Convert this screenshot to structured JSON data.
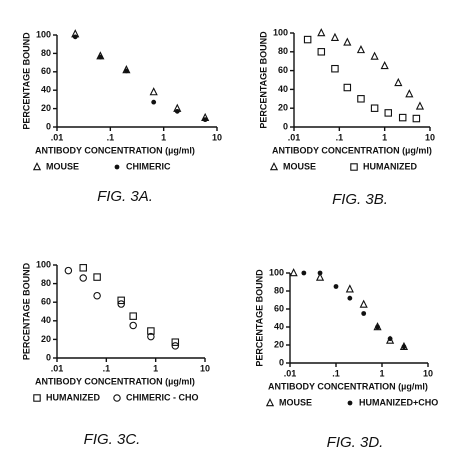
{
  "chart_data": [
    {
      "type": "scatter",
      "title": "FIG. 3A.",
      "xlabel": "ANTIBODY CONCENTRATION (µg/ml)",
      "ylabel": "PERCENTAGE BOUND",
      "xscale": "log",
      "xlim": [
        0.01,
        10
      ],
      "ylim": [
        0,
        100
      ],
      "xticks": [
        {
          "value": 0.01,
          "label": ".01"
        },
        {
          "value": 0.1,
          "label": ".1"
        },
        1,
        10
      ],
      "yticks": [
        0,
        20,
        40,
        60,
        80,
        100
      ],
      "series": [
        {
          "name": "MOUSE",
          "marker": "triangle",
          "color": "#111111",
          "x": [
            0.022,
            0.065,
            0.2,
            0.65,
            1.8,
            6
          ],
          "values": [
            101,
            77,
            62,
            38,
            20,
            10
          ]
        },
        {
          "name": "CHIMERIC",
          "marker": "dot",
          "color": "#111111",
          "x": [
            0.022,
            0.065,
            0.2,
            0.65,
            1.8,
            6
          ],
          "values": [
            98,
            76,
            61,
            27,
            17,
            8
          ]
        }
      ]
    },
    {
      "type": "scatter",
      "title": "FIG. 3B.",
      "xlabel": "ANTIBODY CONCENTRATION (µg/ml)",
      "ylabel": "PERCENTAGE BOUND",
      "xscale": "log",
      "xlim": [
        0.01,
        10
      ],
      "ylim": [
        0,
        100
      ],
      "xticks": [
        {
          "value": 0.01,
          "label": ".01"
        },
        {
          "value": 0.1,
          "label": ".1"
        },
        1,
        10
      ],
      "yticks": [
        0,
        20,
        40,
        60,
        80,
        100
      ],
      "series": [
        {
          "name": "MOUSE",
          "marker": "triangle",
          "color": "#111111",
          "x": [
            0.04,
            0.08,
            0.15,
            0.3,
            0.6,
            1,
            2,
            3.5,
            6
          ],
          "values": [
            100,
            95,
            90,
            82,
            75,
            65,
            47,
            35,
            22
          ]
        },
        {
          "name": "HUMANIZED",
          "marker": "square",
          "color": "#111111",
          "x": [
            0.02,
            0.04,
            0.08,
            0.15,
            0.3,
            0.6,
            1.2,
            2.5,
            5
          ],
          "values": [
            93,
            80,
            62,
            42,
            30,
            20,
            15,
            10,
            9
          ]
        }
      ]
    },
    {
      "type": "scatter",
      "title": "FIG. 3C.",
      "xlabel": "ANTIBODY CONCENTRATION (µg/ml)",
      "ylabel": "PERCENTAGE BOUND",
      "xscale": "log",
      "xlim": [
        0.01,
        10
      ],
      "ylim": [
        0,
        100
      ],
      "xticks": [
        {
          "value": 0.01,
          "label": ".01"
        },
        {
          "value": 0.1,
          "label": ".1"
        },
        1,
        10
      ],
      "yticks": [
        0,
        20,
        40,
        60,
        80,
        100
      ],
      "series": [
        {
          "name": "HUMANIZED",
          "marker": "square",
          "color": "#111111",
          "x": [
            0.034,
            0.065,
            0.2,
            0.35,
            0.8,
            2.5
          ],
          "values": [
            97,
            87,
            62,
            45,
            29,
            17
          ]
        },
        {
          "name": "CHIMERIC - CHO",
          "marker": "circle",
          "color": "#111111",
          "x": [
            0.017,
            0.034,
            0.065,
            0.2,
            0.35,
            0.8,
            2.5
          ],
          "values": [
            94,
            86,
            67,
            58,
            35,
            23,
            13
          ]
        }
      ]
    },
    {
      "type": "scatter",
      "title": "FIG. 3D.",
      "xlabel": "ANTIBODY CONCENTRATION (µg/ml)",
      "ylabel": "PERCENTAGE BOUND",
      "xscale": "log",
      "xlim": [
        0.01,
        10
      ],
      "ylim": [
        0,
        100
      ],
      "xticks": [
        {
          "value": 0.01,
          "label": ".01"
        },
        {
          "value": 0.1,
          "label": ".1"
        },
        1,
        10
      ],
      "yticks": [
        0,
        20,
        40,
        60,
        80,
        100
      ],
      "series": [
        {
          "name": "MOUSE",
          "marker": "triangle",
          "color": "#111111",
          "x": [
            0.012,
            0.045,
            0.2,
            0.4,
            0.8,
            1.5,
            3
          ],
          "values": [
            100,
            95,
            82,
            65,
            40,
            25,
            18
          ]
        },
        {
          "name": "HUMANIZED+CHO",
          "marker": "dot",
          "color": "#111111",
          "x": [
            0.02,
            0.045,
            0.1,
            0.2,
            0.4,
            0.8,
            1.5,
            3
          ],
          "values": [
            100,
            100,
            85,
            72,
            55,
            40,
            27,
            18
          ]
        }
      ]
    }
  ]
}
